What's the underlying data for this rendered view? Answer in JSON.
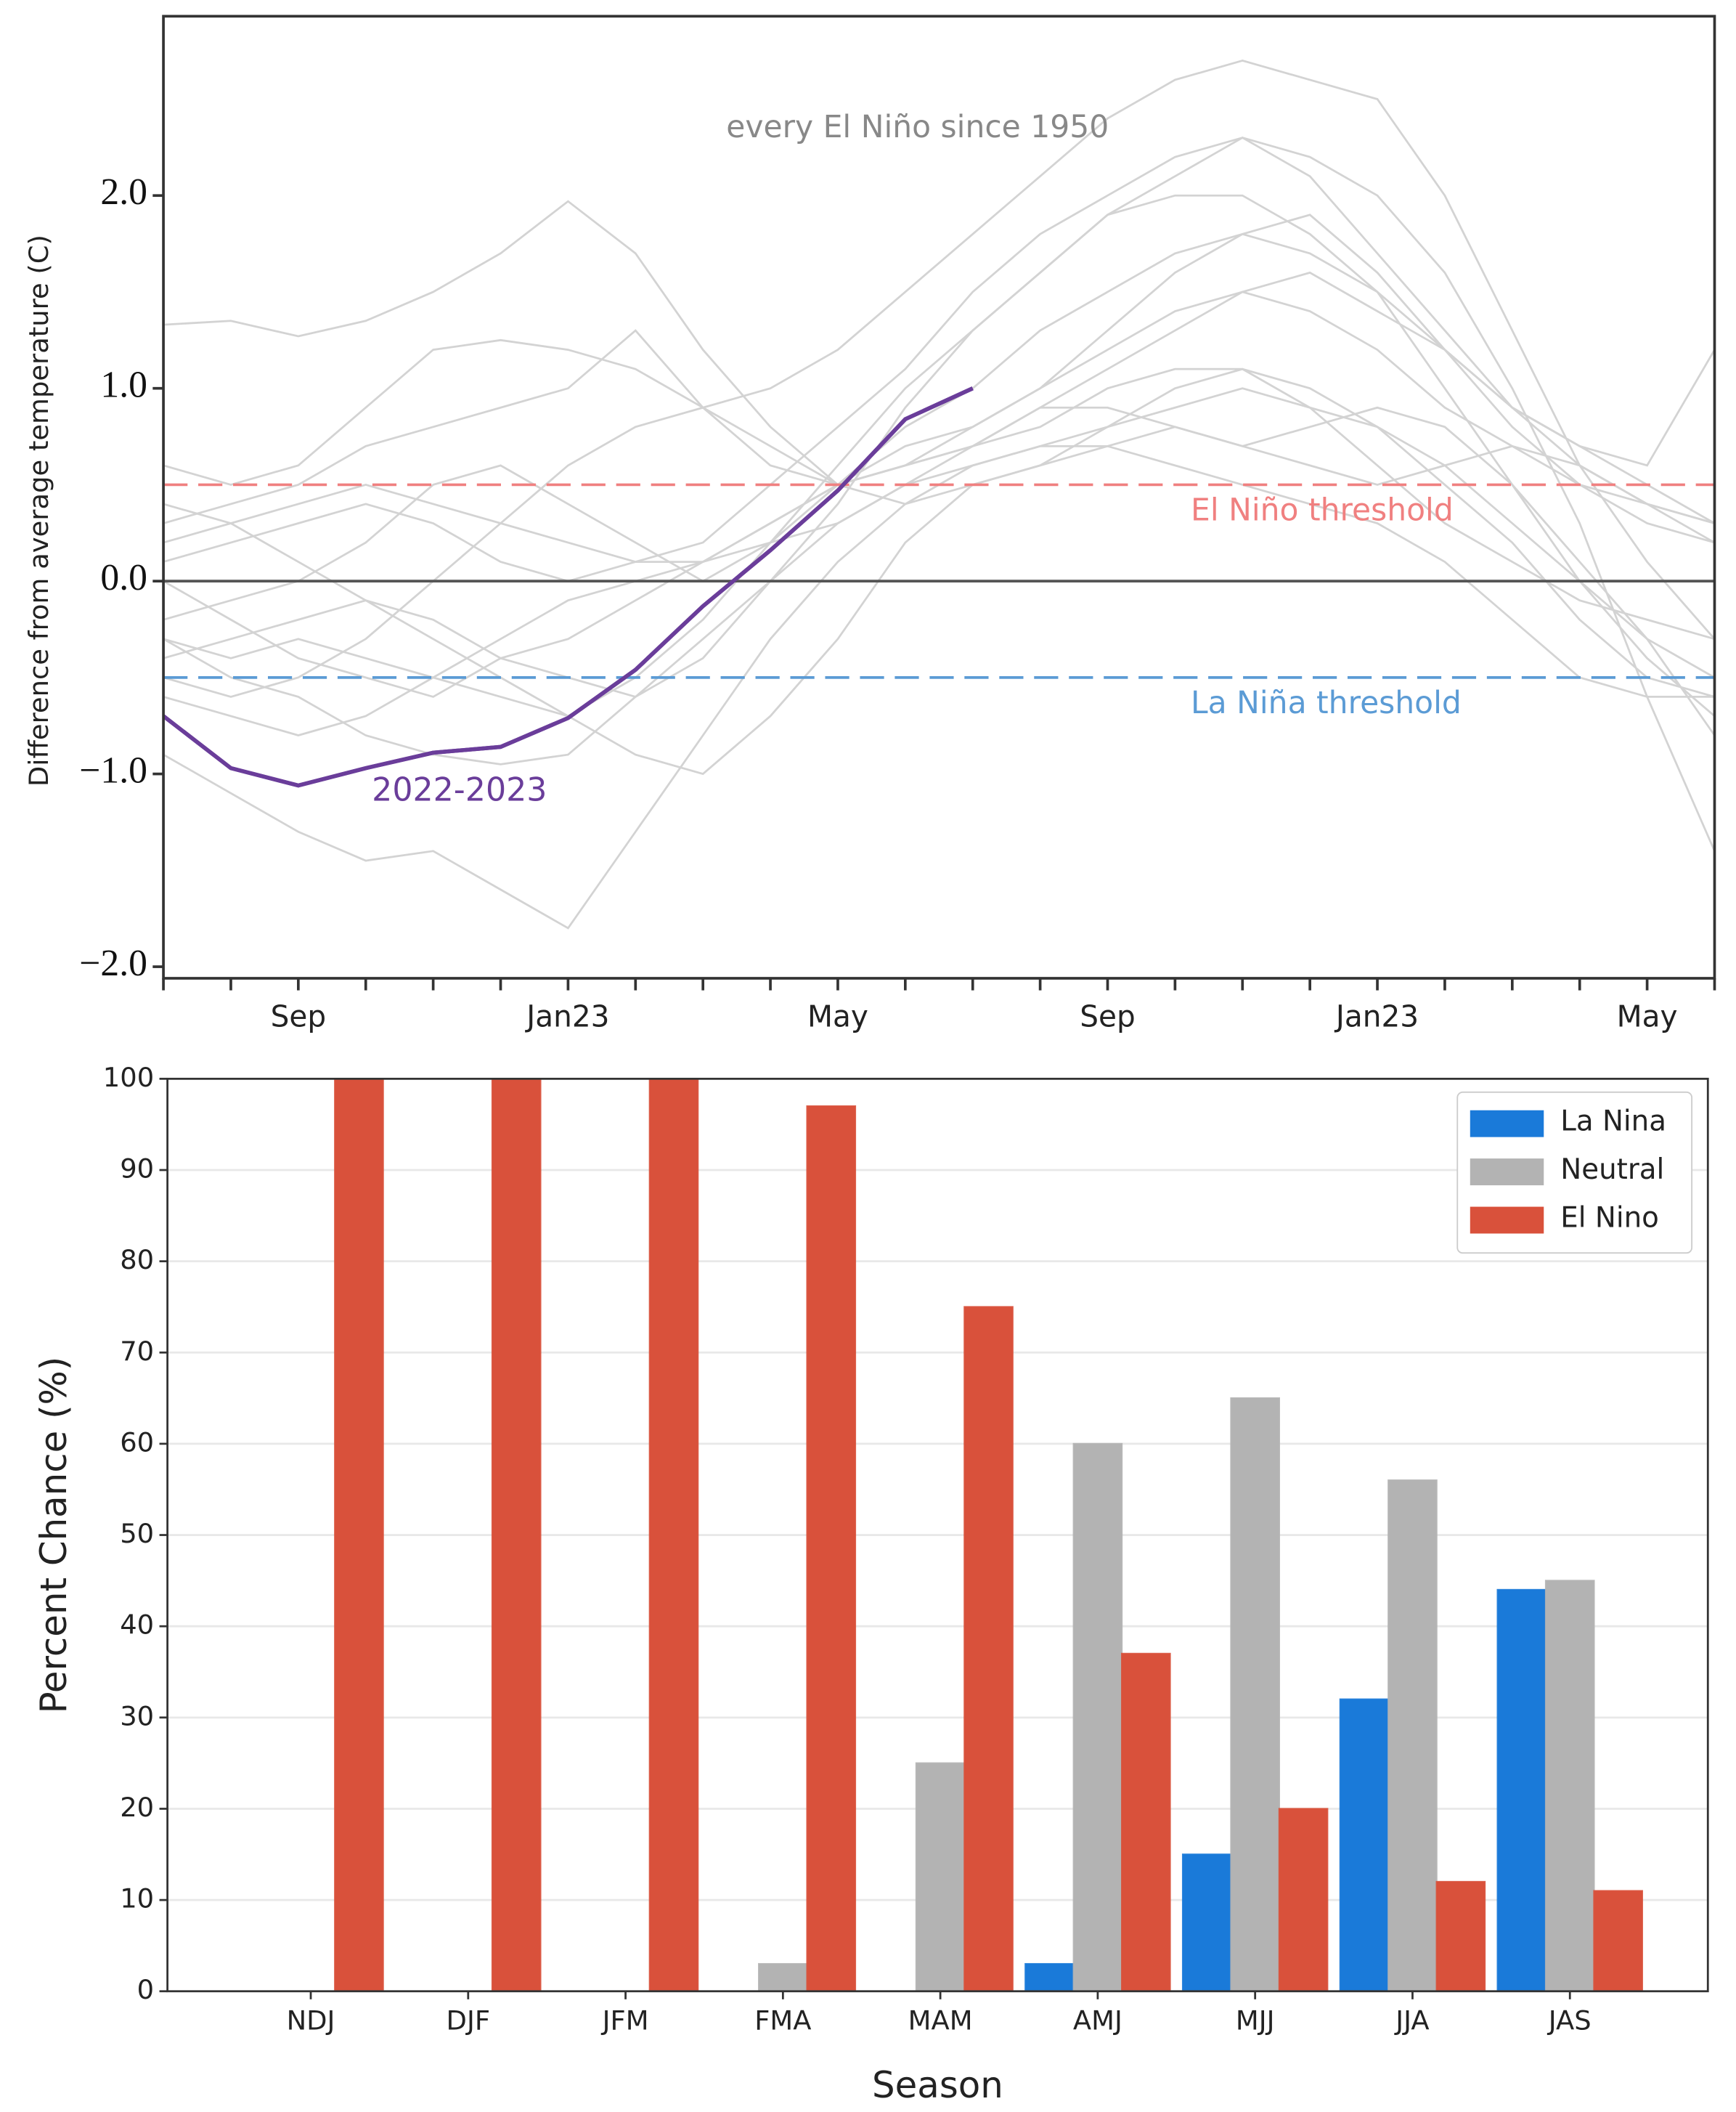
{
  "chart_data": [
    {
      "type": "line",
      "annotation": "every El Niño since 1950",
      "ylabel": "Difference from average temperature (C)",
      "categories": [
        null,
        null,
        "Sep",
        null,
        null,
        null,
        "Jan23",
        null,
        null,
        null,
        "May",
        null,
        null,
        null,
        "Sep",
        null,
        null,
        null,
        "Jan23",
        null,
        null,
        null,
        "May",
        null
      ],
      "ylim": [
        -2.06,
        2.93
      ],
      "yticks": [
        {
          "value": 2,
          "label": "2.0"
        },
        {
          "value": 1,
          "label": "1.0"
        },
        {
          "value": 0,
          "label": "0.0"
        },
        {
          "value": -1,
          "label": "−1.0"
        },
        {
          "value": -2,
          "label": "−2.0"
        }
      ],
      "reference_lines": [
        {
          "value": 0.5,
          "label": "El Niño threshold",
          "color": "#f08080",
          "dashed": true
        },
        {
          "value": -0.5,
          "label": "La Niña threshold",
          "color": "#5b9bd5",
          "dashed": true
        },
        {
          "value": 0,
          "color": "#555555",
          "dashed": false
        }
      ],
      "series": [
        {
          "color": "#d3d3d3",
          "values": [
            1.33,
            1.35,
            1.27,
            1.35,
            1.5,
            1.7,
            1.97,
            1.7,
            1.2,
            0.8,
            0.5,
            0.6,
            0.7,
            0.9,
            1.1,
            1.3,
            1.5,
            1.6,
            1.4,
            1.2,
            0.9,
            0.6,
            0.4,
            0.3
          ]
        },
        {
          "color": "#d3d3d3",
          "values": [
            -0.5,
            -0.6,
            -0.5,
            -0.3,
            0,
            0.3,
            0.6,
            0.8,
            0.9,
            1.0,
            1.2,
            1.5,
            1.8,
            2.1,
            2.4,
            2.6,
            2.7,
            2.6,
            2.5,
            2.0,
            1.3,
            0.6,
            0.1,
            -0.3
          ]
        },
        {
          "color": "#d3d3d3",
          "values": [
            -0.3,
            -0.4,
            -0.3,
            -0.4,
            -0.5,
            -0.6,
            -0.7,
            -0.5,
            -0.2,
            0.2,
            0.6,
            1.0,
            1.3,
            1.6,
            1.9,
            2.1,
            2.3,
            2.2,
            2.0,
            1.6,
            1.0,
            0.3,
            -0.6,
            -1.4
          ]
        },
        {
          "color": "#d3d3d3",
          "values": [
            0.2,
            0.3,
            0.4,
            0.5,
            0.4,
            0.3,
            0.2,
            0.1,
            0.1,
            0.3,
            0.5,
            0.7,
            0.8,
            1.0,
            1.2,
            1.4,
            1.5,
            1.4,
            1.2,
            0.9,
            0.7,
            0.5,
            0.4,
            0.3
          ]
        },
        {
          "color": "#d3d3d3",
          "values": [
            -0.9,
            -1.1,
            -1.3,
            -1.45,
            -1.4,
            -1.6,
            -1.8,
            -1.3,
            -0.8,
            -0.3,
            0.1,
            0.4,
            0.6,
            0.7,
            0.8,
            0.9,
            1.0,
            0.9,
            0.8,
            0.6,
            0.3,
            0,
            -0.4,
            -0.7
          ]
        },
        {
          "color": "#d3d3d3",
          "values": [
            0.6,
            0.5,
            0.6,
            0.9,
            1.2,
            1.25,
            1.2,
            1.1,
            0.9,
            0.7,
            0.5,
            0.4,
            0.5,
            0.6,
            0.8,
            1.0,
            1.1,
            1.0,
            0.8,
            0.5,
            0.2,
            -0.2,
            -0.5,
            -0.6
          ]
        },
        {
          "color": "#d3d3d3",
          "values": [
            -0.2,
            -0.1,
            0,
            0.2,
            0.5,
            0.6,
            0.4,
            0.2,
            0,
            0.2,
            0.5,
            0.8,
            1.0,
            1.3,
            1.5,
            1.7,
            1.8,
            1.7,
            1.5,
            1.2,
            0.9,
            0.7,
            0.6,
            1.2
          ]
        },
        {
          "color": "#d3d3d3",
          "values": [
            0,
            -0.2,
            -0.4,
            -0.5,
            -0.6,
            -0.4,
            -0.3,
            -0.1,
            0.1,
            0.3,
            0.5,
            0.6,
            0.7,
            0.8,
            1.0,
            1.1,
            1.1,
            0.9,
            0.6,
            0.3,
            0.1,
            -0.1,
            -0.2,
            -0.3
          ]
        },
        {
          "color": "#d3d3d3",
          "values": [
            -0.4,
            -0.3,
            -0.2,
            -0.1,
            -0.2,
            -0.4,
            -0.5,
            -0.6,
            -0.4,
            0,
            0.4,
            0.9,
            1.3,
            1.6,
            1.9,
            2.0,
            2.0,
            1.8,
            1.5,
            1.0,
            0.5,
            0,
            -0.3,
            -0.5
          ]
        },
        {
          "color": "#d3d3d3",
          "values": [
            0.4,
            0.3,
            0.1,
            -0.1,
            -0.3,
            -0.5,
            -0.7,
            -0.9,
            -1.0,
            -0.7,
            -0.3,
            0.2,
            0.5,
            0.6,
            0.7,
            0.8,
            0.7,
            0.6,
            0.5,
            0.6,
            0.7,
            0.6,
            0.4,
            0.2
          ]
        },
        {
          "color": "#d3d3d3",
          "values": [
            -0.6,
            -0.7,
            -0.8,
            -0.7,
            -0.5,
            -0.3,
            -0.1,
            0,
            0.1,
            0.2,
            0.3,
            0.5,
            0.7,
            0.9,
            0.9,
            0.8,
            0.7,
            0.8,
            0.9,
            0.8,
            0.5,
            0.1,
            -0.3,
            -0.8
          ]
        },
        {
          "color": "#d3d3d3",
          "values": [
            0.1,
            0.2,
            0.3,
            0.4,
            0.3,
            0.1,
            0,
            0.1,
            0.2,
            0.5,
            0.8,
            1.1,
            1.5,
            1.8,
            2.0,
            2.2,
            2.3,
            2.1,
            1.7,
            1.3,
            0.9,
            0.7,
            0.5,
            0.3
          ]
        },
        {
          "color": "#d3d3d3",
          "values": [
            -0.3,
            -0.5,
            -0.6,
            -0.8,
            -0.9,
            -0.95,
            -0.9,
            -0.6,
            -0.3,
            0,
            0.3,
            0.5,
            0.6,
            0.7,
            0.7,
            0.6,
            0.5,
            0.4,
            0.3,
            0.1,
            -0.2,
            -0.5,
            -0.6,
            -0.6
          ]
        },
        {
          "color": "#d3d3d3",
          "values": [
            0.3,
            0.4,
            0.5,
            0.7,
            0.8,
            0.9,
            1.0,
            1.3,
            0.9,
            0.6,
            0.5,
            0.6,
            0.8,
            1.0,
            1.3,
            1.6,
            1.8,
            1.9,
            1.6,
            1.2,
            0.8,
            0.5,
            0.3,
            0.2
          ]
        },
        {
          "name": "2022-2023",
          "color": "#6a3d9a",
          "values": [
            -0.7,
            -0.97,
            -1.06,
            -0.97,
            -0.89,
            -0.86,
            -0.71,
            -0.46,
            -0.13,
            0.16,
            0.47,
            0.84,
            1.0,
            null,
            null,
            null,
            null,
            null,
            null,
            null,
            null,
            null,
            null,
            null
          ]
        }
      ]
    },
    {
      "type": "bar",
      "xlabel": "Season",
      "ylabel": "Percent Chance (%)",
      "categories": [
        "NDJ",
        "DJF",
        "JFM",
        "FMA",
        "MAM",
        "AMJ",
        "MJJ",
        "JJA",
        "JAS"
      ],
      "ylim": [
        0,
        100
      ],
      "yticks": [
        0,
        10,
        20,
        30,
        40,
        50,
        60,
        70,
        80,
        90,
        100
      ],
      "grid": true,
      "legend": "upper right",
      "series": [
        {
          "name": "La Nina",
          "color": "#1e8fff",
          "values": [
            0,
            0,
            0,
            0,
            0,
            3,
            15,
            32,
            44
          ]
        },
        {
          "name": "Neutral",
          "color": "#d3d3d3",
          "values": [
            0,
            0,
            0,
            3,
            25,
            60,
            65,
            56,
            45
          ]
        },
        {
          "name": "El Nino",
          "color": "#ff5f45",
          "values": [
            100,
            100,
            100,
            97,
            75,
            37,
            20,
            12,
            11
          ]
        }
      ]
    }
  ]
}
